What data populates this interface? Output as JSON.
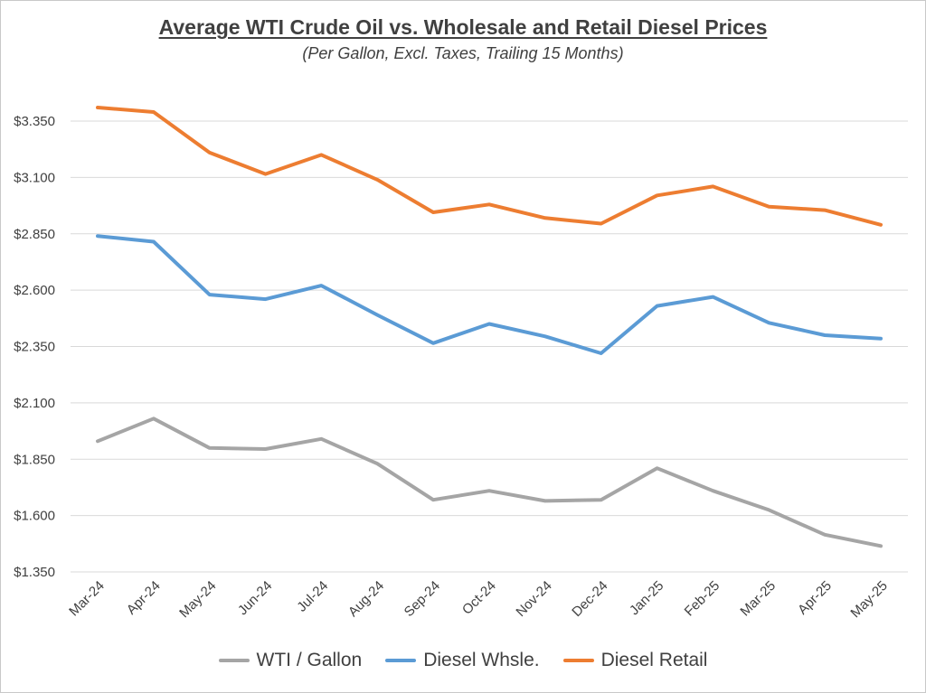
{
  "chart_data": {
    "type": "line",
    "title": "Average WTI Crude Oil vs. Wholesale and Retail Diesel Prices",
    "subtitle": "(Per Gallon, Excl. Taxes, Trailing 15 Months)",
    "xlabel": "",
    "ylabel": "",
    "categories": [
      "Mar-24",
      "Apr-24",
      "May-24",
      "Jun-24",
      "Jul-24",
      "Aug-24",
      "Sep-24",
      "Oct-24",
      "Nov-24",
      "Dec-24",
      "Jan-25",
      "Feb-25",
      "Mar-25",
      "Apr-25",
      "May-25"
    ],
    "ylim": [
      1.35,
      3.35
    ],
    "yticks": [
      1.35,
      1.6,
      1.85,
      2.1,
      2.35,
      2.6,
      2.85,
      3.1,
      3.35
    ],
    "ytick_labels": [
      "$1.350",
      "$1.600",
      "$1.850",
      "$2.100",
      "$2.350",
      "$2.600",
      "$2.850",
      "$3.100",
      "$3.350"
    ],
    "grid": "horizontal",
    "legend_position": "bottom",
    "series": [
      {
        "name": "WTI / Gallon",
        "color": "#a5a5a5",
        "values": [
          1.93,
          2.03,
          1.9,
          1.895,
          1.94,
          1.83,
          1.67,
          1.71,
          1.665,
          1.67,
          1.81,
          1.71,
          1.625,
          1.515,
          1.465
        ]
      },
      {
        "name": "Diesel Whsle.",
        "color": "#5b9bd5",
        "values": [
          2.84,
          2.815,
          2.58,
          2.56,
          2.62,
          2.49,
          2.365,
          2.45,
          2.395,
          2.32,
          2.53,
          2.57,
          2.455,
          2.4,
          2.385
        ]
      },
      {
        "name": "Diesel Retail",
        "color": "#ed7d31",
        "values": [
          3.41,
          3.39,
          3.21,
          3.115,
          3.2,
          3.09,
          2.945,
          2.98,
          2.92,
          2.895,
          3.02,
          3.06,
          2.97,
          2.955,
          2.89
        ]
      }
    ]
  }
}
